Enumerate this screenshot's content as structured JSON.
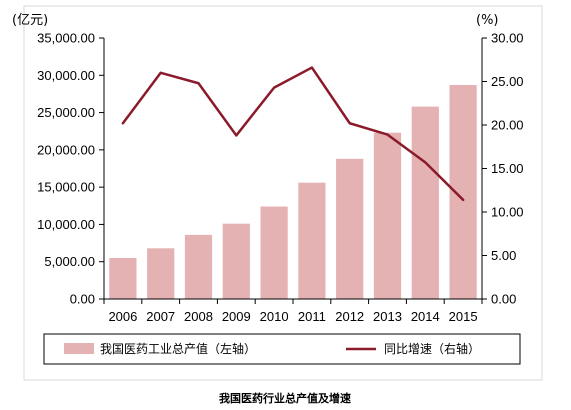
{
  "chart_data": {
    "type": "bar",
    "categories": [
      "2006",
      "2007",
      "2008",
      "2009",
      "2010",
      "2011",
      "2012",
      "2013",
      "2014",
      "2015"
    ],
    "series": [
      {
        "name": "我国医药工业总产值（左轴）",
        "type": "bar",
        "axis": "left",
        "color": "#e4b2b2",
        "values": [
          5500,
          6800,
          8600,
          10100,
          12400,
          15600,
          18800,
          22300,
          25800,
          28700
        ]
      },
      {
        "name": "同比增速（右轴）",
        "type": "line",
        "axis": "right",
        "color": "#8b1a2b",
        "values": [
          20.2,
          26.0,
          24.8,
          18.8,
          24.3,
          26.6,
          20.2,
          18.9,
          15.7,
          11.4
        ]
      }
    ],
    "y_left": {
      "unit": "(亿元)",
      "ylim": [
        0,
        35000
      ],
      "ticks": [
        "0.00",
        "5,000.00",
        "10,000.00",
        "15,000.00",
        "20,000.00",
        "25,000.00",
        "30,000.00",
        "35,000.00"
      ]
    },
    "y_right": {
      "unit": "(%)",
      "ylim": [
        0,
        30
      ],
      "ticks": [
        "0.00",
        "5.00",
        "10.00",
        "15.00",
        "20.00",
        "25.00",
        "30.00"
      ]
    },
    "legend_position": "bottom",
    "grid": false
  },
  "caption": "我国医药行业总产值及增速"
}
